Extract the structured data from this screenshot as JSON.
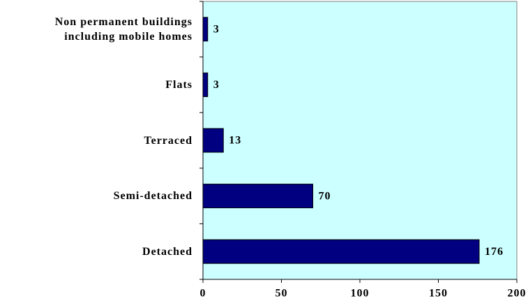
{
  "chart_data": {
    "type": "bar",
    "orientation": "horizontal",
    "categories": [
      "Non permanent buildings including mobile homes",
      "Flats",
      "Terraced",
      "Semi-detached",
      "Detached"
    ],
    "values": [
      3,
      3,
      13,
      70,
      176
    ],
    "color": "#000080",
    "background": "#ccffff",
    "xlim": [
      0,
      200
    ],
    "xticks": [
      0,
      50,
      100,
      150,
      200
    ]
  }
}
